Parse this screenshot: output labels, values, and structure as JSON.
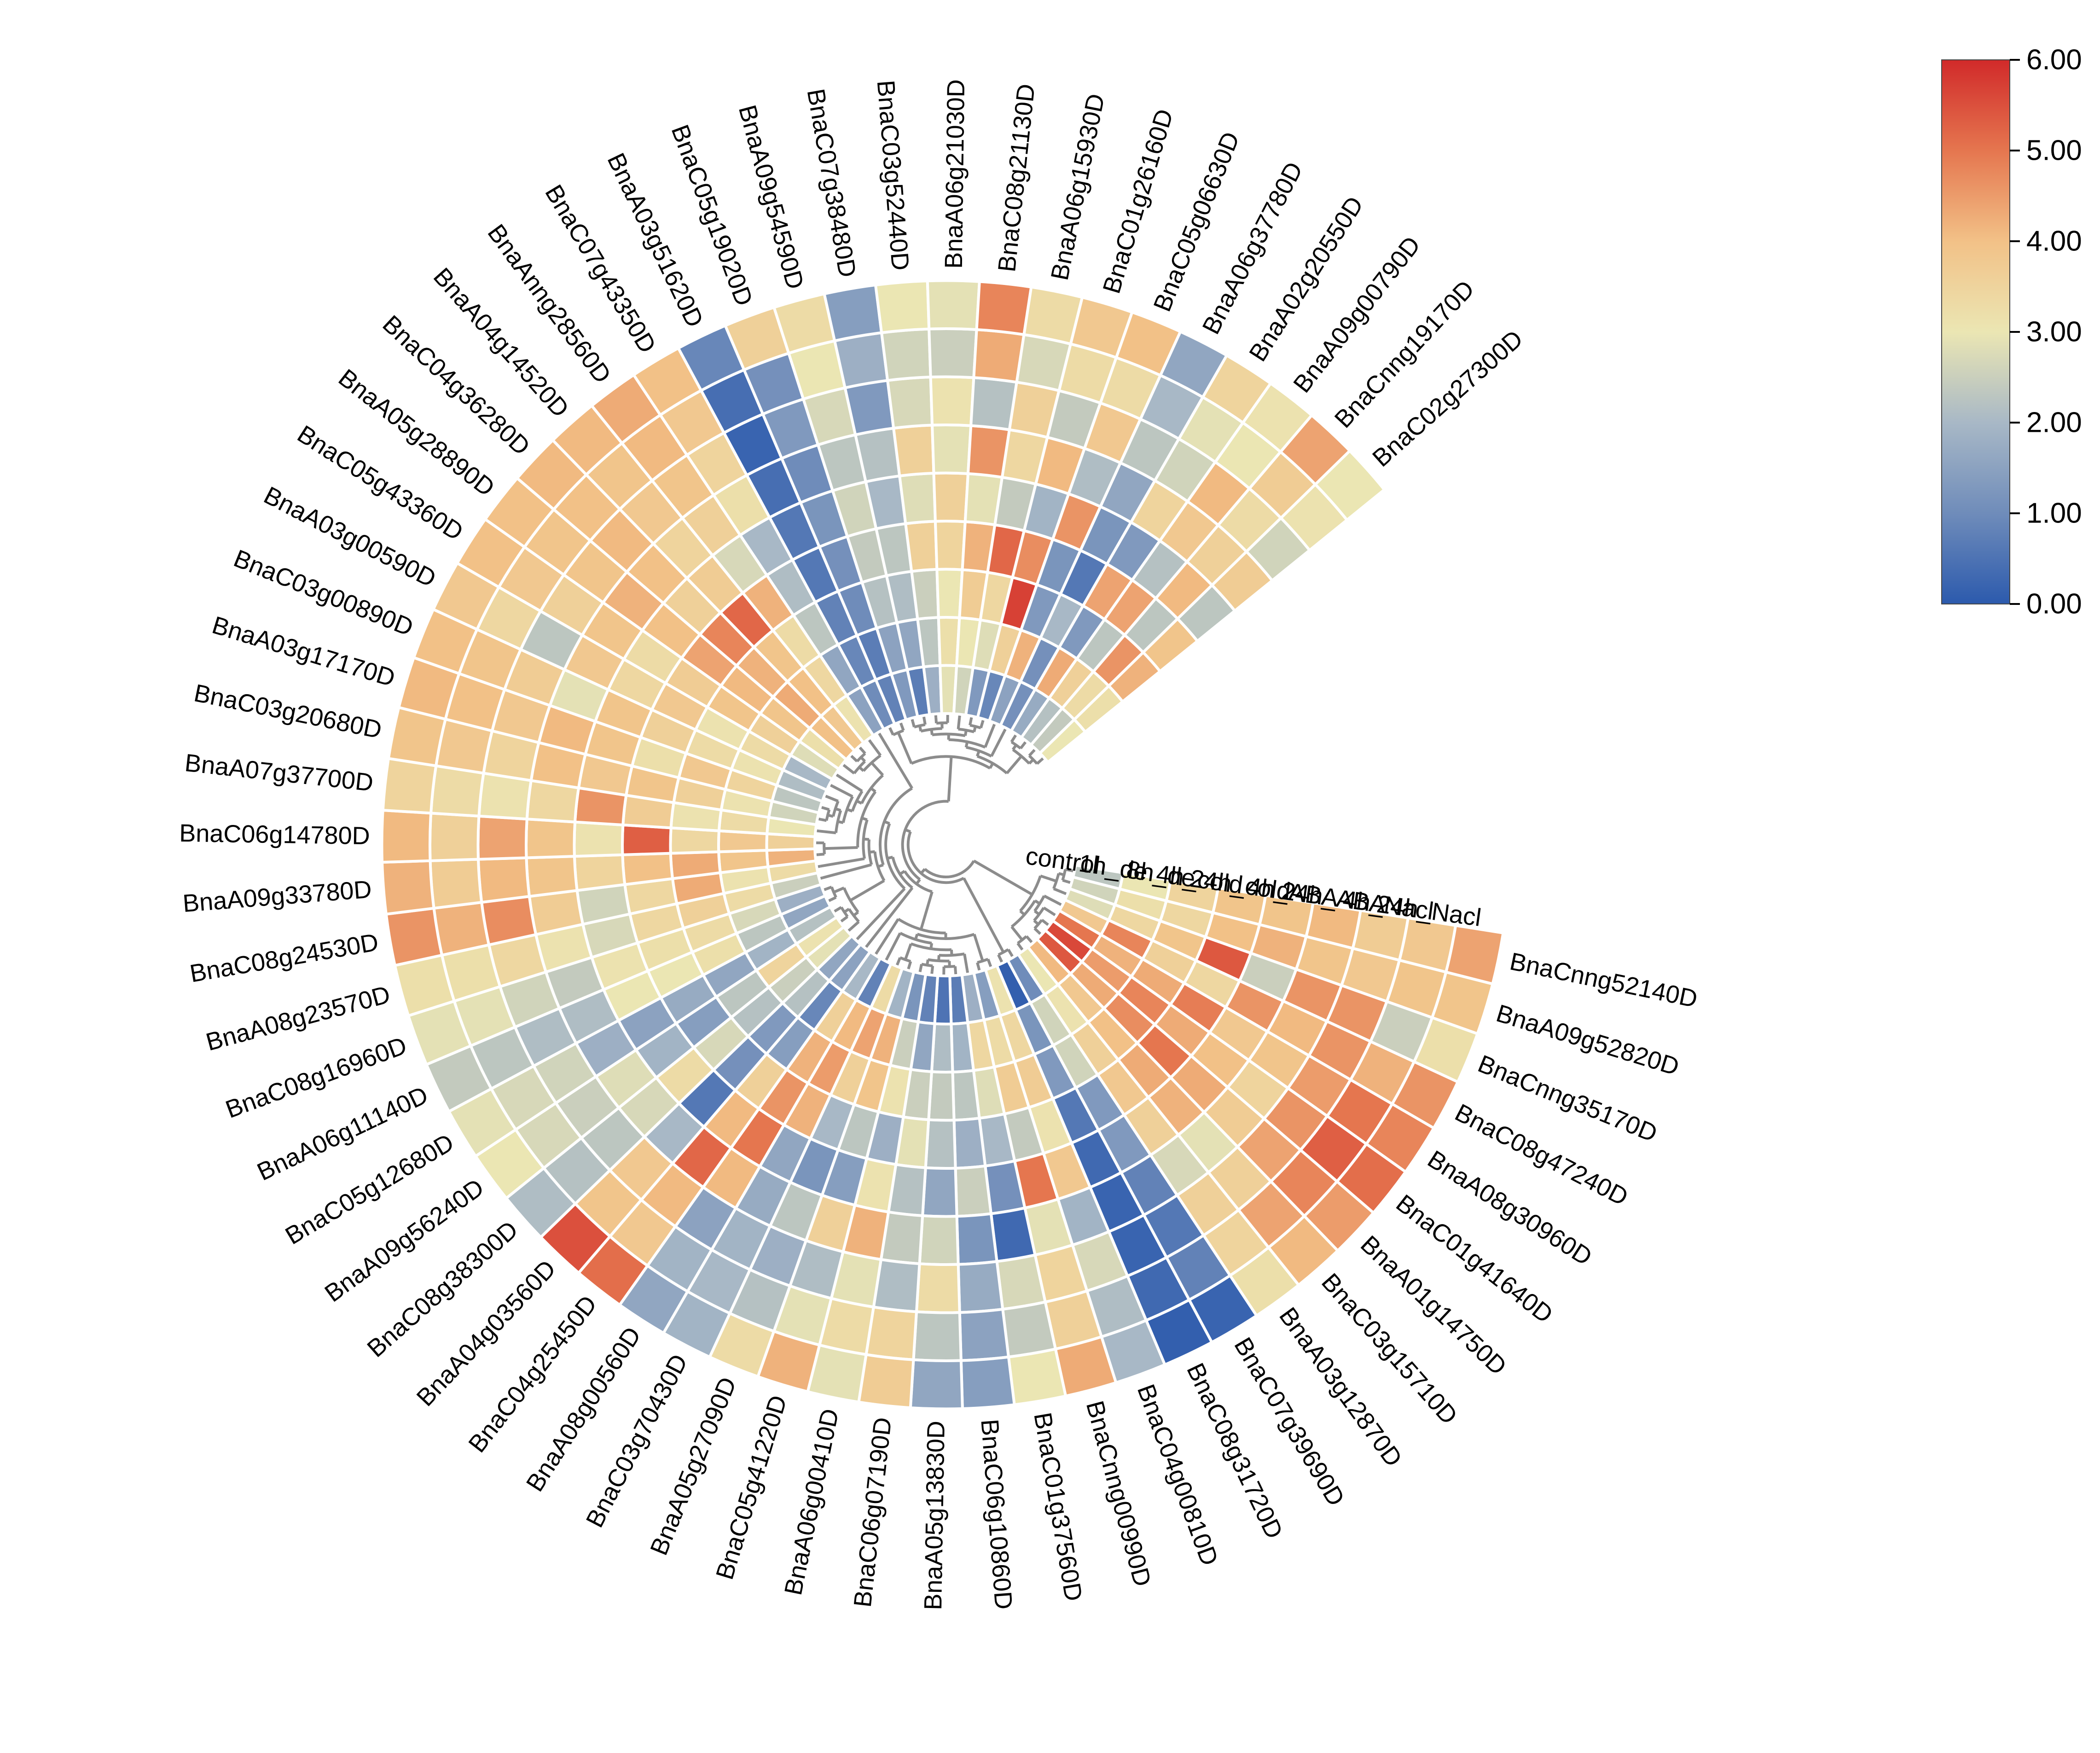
{
  "chart_data": {
    "type": "heatmap",
    "layout": "circular fan heatmap with hierarchical clustering dendrogram",
    "tracks_inner_to_outer": [
      "control",
      "1h_de",
      "8h_de",
      "4h_cold",
      "24h_cold",
      "4h_ABA",
      "24h_ABA",
      "4h_Nacl",
      "24h_Nacl"
    ],
    "colorbar": {
      "min": 0.0,
      "max": 6.0,
      "tick_labels": [
        "6.00",
        "5.00",
        "4.00",
        "3.00",
        "2.00",
        "1.00",
        "0.00"
      ],
      "colors": [
        "#2c5aad",
        "#6f8cba",
        "#a8b8c6",
        "#ebe6b3",
        "#f2c187",
        "#e5764f",
        "#d12a2a"
      ]
    },
    "rows": [
      {
        "gene": "BnaCnng52140D",
        "values": [
          2.3,
          3.0,
          3.5,
          3.9,
          3.9,
          4.1,
          3.7,
          3.8,
          4.4
        ]
      },
      {
        "gene": "BnaA09g52820D",
        "values": [
          2.6,
          3.2,
          3.4,
          4.0,
          4.2,
          3.9,
          3.8,
          3.9,
          3.9
        ]
      },
      {
        "gene": "BnaCnng35170D",
        "values": [
          2.8,
          3.4,
          3.9,
          5.4,
          2.5,
          4.6,
          4.6,
          2.5,
          3.2
        ]
      },
      {
        "gene": "BnaC08g47240D",
        "values": [
          3.8,
          4.8,
          3.6,
          3.4,
          4.6,
          4.1,
          4.6,
          4.2,
          4.6
        ]
      },
      {
        "gene": "BnaA08g30960D",
        "values": [
          5.0,
          4.2,
          4.3,
          4.9,
          3.8,
          3.9,
          4.5,
          5.0,
          4.8
        ]
      },
      {
        "gene": "BnaC01g41640D",
        "values": [
          5.6,
          4.5,
          4.8,
          4.3,
          4.0,
          3.5,
          4.6,
          5.3,
          5.1
        ]
      },
      {
        "gene": "BnaA01g14750D",
        "values": [
          5.4,
          4.3,
          4.7,
          5.0,
          4.3,
          3.7,
          4.4,
          4.8,
          4.5
        ]
      },
      {
        "gene": "BnaC03g15710D",
        "values": [
          4.1,
          3.8,
          4.0,
          4.3,
          4.2,
          2.9,
          3.6,
          4.4,
          4.1
        ]
      },
      {
        "gene": "BnaA03g12870D",
        "values": [
          3.0,
          3.1,
          3.6,
          3.8,
          3.6,
          2.7,
          3.6,
          3.5,
          3.2
        ]
      },
      {
        "gene": "BnaC07g39690D",
        "values": [
          1.0,
          2.6,
          2.6,
          1.3,
          1.3,
          0.8,
          0.6,
          0.8,
          0.2
        ]
      },
      {
        "gene": "BnaC08g31720D",
        "values": [
          0.1,
          1.2,
          1.3,
          0.6,
          0.3,
          0.2,
          0.2,
          0.3,
          0.1
        ]
      },
      {
        "gene": "BnaC04g00810D",
        "values": [
          3.1,
          3.4,
          3.7,
          3.1,
          3.8,
          1.9,
          2.7,
          2.1,
          2.0
        ]
      },
      {
        "gene": "BnaCnng00990D",
        "values": [
          1.4,
          3.3,
          3.7,
          2.4,
          5.0,
          2.9,
          3.5,
          3.6,
          4.3
        ]
      },
      {
        "gene": "BnaC01g37560D",
        "values": [
          1.8,
          3.4,
          2.8,
          2.0,
          1.1,
          0.3,
          2.7,
          2.4,
          3.0
        ]
      },
      {
        "gene": "BnaC06g10860D",
        "values": [
          0.7,
          1.9,
          2.3,
          1.8,
          2.5,
          1.2,
          1.7,
          1.5,
          1.4
        ]
      },
      {
        "gene": "BnaA05g13830D",
        "values": [
          0.5,
          2.1,
          2.4,
          2.2,
          1.6,
          2.6,
          3.3,
          2.3,
          1.6
        ]
      },
      {
        "gene": "BnaC06g07190D",
        "values": [
          0.8,
          1.6,
          2.5,
          2.9,
          2.2,
          2.4,
          2.1,
          3.5,
          3.7
        ]
      },
      {
        "gene": "BnaA06g00410D",
        "values": [
          1.2,
          2.5,
          3.1,
          1.8,
          3.1,
          4.2,
          2.9,
          3.3,
          2.9
        ]
      },
      {
        "gene": "BnaC05g41220D",
        "values": [
          1.9,
          4.2,
          3.9,
          2.3,
          1.4,
          3.6,
          2.1,
          2.9,
          4.2
        ]
      },
      {
        "gene": "BnaA05g27090D",
        "values": [
          3.3,
          4.4,
          3.6,
          2.0,
          1.2,
          2.3,
          1.8,
          2.2,
          3.3
        ]
      },
      {
        "gene": "BnaC03g70430D",
        "values": [
          0.8,
          4.1,
          4.5,
          4.2,
          1.6,
          1.7,
          1.9,
          2.0,
          1.9
        ]
      },
      {
        "gene": "BnaA08g00560D",
        "values": [
          2.0,
          3.6,
          4.2,
          4.6,
          5.0,
          4.1,
          1.5,
          1.9,
          1.6
        ]
      },
      {
        "gene": "BnaC04g25450D",
        "values": [
          1.5,
          0.9,
          1.4,
          3.6,
          4.1,
          5.2,
          4.1,
          3.8,
          5.1
        ]
      },
      {
        "gene": "BnaA04g03560D",
        "values": [
          1.6,
          2.2,
          1.3,
          1.1,
          0.6,
          2.0,
          3.8,
          3.9,
          5.5
        ]
      },
      {
        "gene": "BnaC08g38300D",
        "values": [
          2.9,
          2.5,
          2.2,
          2.7,
          3.3,
          2.7,
          2.3,
          2.2,
          2.1
        ]
      },
      {
        "gene": "BnaA09g56240D",
        "values": [
          3.1,
          3.5,
          2.3,
          1.4,
          1.9,
          2.8,
          2.5,
          2.7,
          3.0
        ]
      },
      {
        "gene": "BnaC05g12680D",
        "values": [
          2.2,
          1.9,
          1.6,
          1.7,
          1.5,
          1.8,
          2.6,
          2.7,
          2.9
        ]
      },
      {
        "gene": "BnaA06g11140D",
        "values": [
          1.6,
          2.3,
          3.2,
          3.0,
          3.0,
          2.1,
          2.1,
          2.3,
          2.4
        ]
      },
      {
        "gene": "BnaC08g16960D",
        "values": [
          1.8,
          2.7,
          3.3,
          3.2,
          3.1,
          2.4,
          2.6,
          2.9,
          2.9
        ]
      },
      {
        "gene": "BnaA08g23570D",
        "values": [
          2.5,
          3.3,
          3.6,
          3.4,
          2.7,
          3.1,
          3.4,
          3.2,
          3.2
        ]
      },
      {
        "gene": "BnaC08g24530D",
        "values": [
          3.3,
          3.1,
          4.3,
          3.4,
          2.6,
          3.7,
          4.7,
          4.2,
          4.6
        ]
      },
      {
        "gene": "BnaA09g33780D",
        "values": [
          4.2,
          3.9,
          4.3,
          4.0,
          3.5,
          3.9,
          4.1,
          3.7,
          4.2
        ]
      },
      {
        "gene": "BnaC06g14780D",
        "values": [
          3.6,
          3.8,
          3.4,
          5.3,
          3.1,
          3.9,
          4.4,
          3.6,
          4.1
        ]
      },
      {
        "gene": "BnaA07g37700D",
        "values": [
          3.0,
          3.3,
          3.1,
          3.7,
          4.6,
          3.4,
          3.1,
          3.3,
          3.5
        ]
      },
      {
        "gene": "BnaC03g20680D",
        "values": [
          2.6,
          3.1,
          3.6,
          3.9,
          3.8,
          4.0,
          3.5,
          3.8,
          3.9
        ]
      },
      {
        "gene": "BnaA03g17170D",
        "values": [
          2.3,
          3.5,
          3.8,
          3.2,
          3.9,
          4.1,
          3.8,
          4.0,
          4.1
        ]
      },
      {
        "gene": "BnaC03g00890D",
        "values": [
          2.1,
          3.1,
          3.3,
          3.6,
          3.9,
          2.9,
          3.7,
          3.9,
          4.0
        ]
      },
      {
        "gene": "BnaA03g00590D",
        "values": [
          2.0,
          3.3,
          3.1,
          3.8,
          3.4,
          3.8,
          2.3,
          3.4,
          3.8
        ]
      },
      {
        "gene": "BnaC05g43360D",
        "values": [
          2.8,
          3.6,
          3.9,
          3.7,
          3.3,
          3.9,
          3.6,
          3.8,
          4.0
        ]
      },
      {
        "gene": "BnaA05g28890D",
        "values": [
          3.2,
          3.9,
          4.1,
          4.4,
          4.0,
          4.2,
          3.9,
          3.9,
          4.0
        ]
      },
      {
        "gene": "BnaC04g36280D",
        "values": [
          4.0,
          4.3,
          4.2,
          4.8,
          3.6,
          4.0,
          4.1,
          4.0,
          4.1
        ]
      },
      {
        "gene": "BnaA04g14520D",
        "values": [
          3.8,
          4.0,
          3.9,
          5.2,
          3.7,
          3.5,
          3.8,
          3.9,
          4.1
        ]
      },
      {
        "gene": "BnaAnng28560D",
        "values": [
          3.1,
          3.4,
          3.3,
          4.2,
          2.7,
          3.6,
          3.9,
          4.1,
          4.3
        ]
      },
      {
        "gene": "BnaC07g43350D",
        "values": [
          1.5,
          1.6,
          2.3,
          2.1,
          2.0,
          3.2,
          3.5,
          3.8,
          4.0
        ]
      },
      {
        "gene": "BnaA03g51620D",
        "values": [
          1.0,
          0.9,
          0.8,
          0.6,
          0.6,
          0.4,
          0.2,
          0.4,
          0.9
        ]
      },
      {
        "gene": "BnaC05g19020D",
        "values": [
          0.8,
          0.7,
          1.0,
          1.1,
          1.2,
          1.0,
          1.3,
          1.1,
          3.6
        ]
      },
      {
        "gene": "BnaA09g54590D",
        "values": [
          1.3,
          1.5,
          2.2,
          2.4,
          2.6,
          2.3,
          2.7,
          3.0,
          3.3
        ]
      },
      {
        "gene": "BnaC07g38480D",
        "values": [
          0.7,
          1.6,
          2.1,
          2.3,
          2.0,
          2.2,
          1.3,
          1.8,
          1.4
        ]
      },
      {
        "gene": "BnaC03g52440D",
        "values": [
          1.8,
          2.3,
          2.5,
          3.6,
          2.8,
          3.6,
          2.7,
          2.6,
          3.0
        ]
      },
      {
        "gene": "BnaA06g21030D",
        "values": [
          2.9,
          3.2,
          3.0,
          3.5,
          3.6,
          2.9,
          3.1,
          2.5,
          2.9
        ]
      },
      {
        "gene": "BnaC08g21130D",
        "values": [
          2.6,
          3.0,
          3.7,
          4.2,
          2.9,
          4.6,
          2.2,
          4.3,
          4.8
        ]
      },
      {
        "gene": "BnaA06g15930D",
        "values": [
          1.3,
          2.8,
          3.4,
          5.2,
          2.4,
          3.4,
          3.6,
          2.7,
          3.3
        ]
      },
      {
        "gene": "BnaC01g26160D",
        "values": [
          0.9,
          3.6,
          5.7,
          4.7,
          1.9,
          4.1,
          2.4,
          3.3,
          3.8
        ]
      },
      {
        "gene": "BnaC05g06630D",
        "values": [
          1.5,
          4.2,
          1.3,
          1.2,
          4.6,
          2.1,
          3.8,
          3.3,
          4.0
        ]
      },
      {
        "gene": "BnaA06g37780D",
        "values": [
          1.1,
          1.1,
          2.0,
          0.6,
          1.2,
          1.6,
          2.3,
          2.0,
          1.6
        ]
      },
      {
        "gene": "BnaA02g20550D",
        "values": [
          1.7,
          4.3,
          1.3,
          4.4,
          1.3,
          3.5,
          2.6,
          2.9,
          3.5
        ]
      },
      {
        "gene": "BnaA09g00790D",
        "values": [
          2.2,
          3.6,
          2.3,
          4.4,
          2.2,
          3.8,
          4.1,
          3.0,
          3.1
        ]
      },
      {
        "gene": "BnaCnng19170D",
        "values": [
          2.4,
          3.3,
          4.6,
          2.3,
          4.1,
          3.6,
          3.3,
          3.7,
          4.4
        ]
      },
      {
        "gene": "BnaC02g27300D",
        "values": [
          3.0,
          3.2,
          4.2,
          3.9,
          2.3,
          3.7,
          2.6,
          3.1,
          3.0
        ]
      }
    ]
  }
}
